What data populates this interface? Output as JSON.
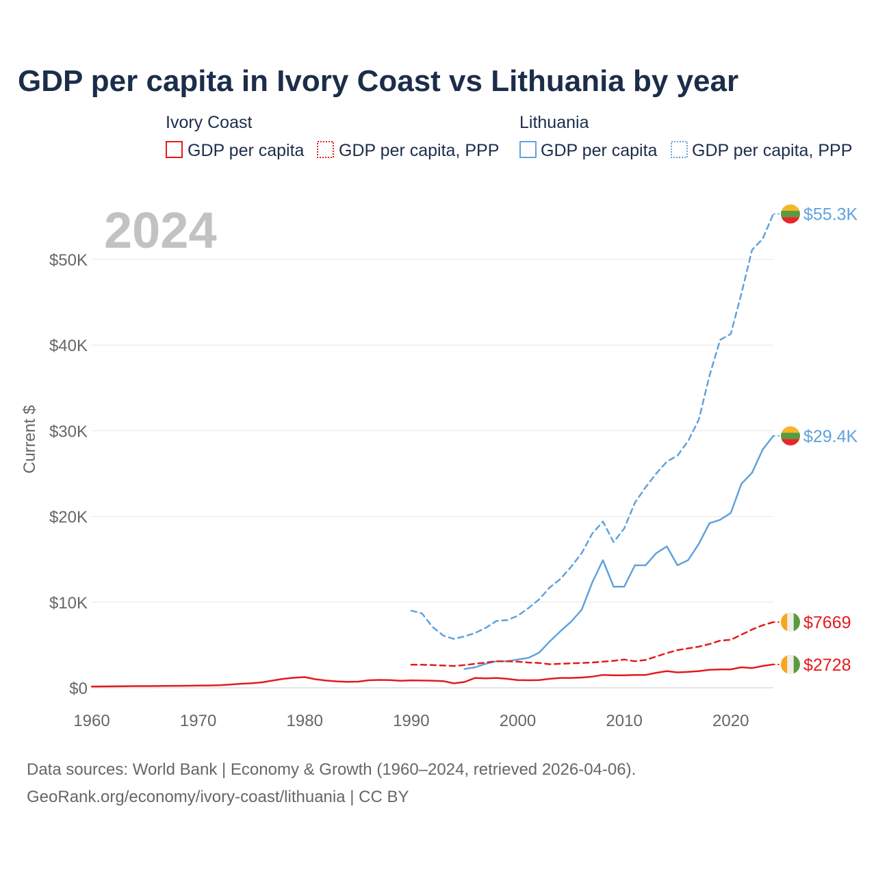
{
  "chart_data": {
    "type": "line",
    "title": "GDP per capita in Ivory Coast vs Lithuania by year",
    "ylabel": "Current $",
    "xlabel": "",
    "year_label": "2024",
    "xlim": [
      1960,
      2024
    ],
    "ylim": [
      0,
      55000
    ],
    "x_ticks": [
      {
        "value": 1960,
        "label": "1960"
      },
      {
        "value": 1970,
        "label": "1970"
      },
      {
        "value": 1980,
        "label": "1980"
      },
      {
        "value": 1990,
        "label": "1990"
      },
      {
        "value": 2000,
        "label": "2000"
      },
      {
        "value": 2010,
        "label": "2010"
      },
      {
        "value": 2020,
        "label": "2020"
      }
    ],
    "y_ticks": [
      {
        "value": 0,
        "label": "$0"
      },
      {
        "value": 10000,
        "label": "$10K"
      },
      {
        "value": 20000,
        "label": "$20K"
      },
      {
        "value": 30000,
        "label": "$30K"
      },
      {
        "value": 40000,
        "label": "$40K"
      },
      {
        "value": 50000,
        "label": "$50K"
      }
    ],
    "legend_groups": [
      {
        "country": "Ivory Coast",
        "items": [
          "GDP per capita",
          "GDP per capita, PPP"
        ],
        "color": "#e41a1c"
      },
      {
        "country": "Lithuania",
        "items": [
          "GDP per capita",
          "GDP per capita, PPP"
        ],
        "color": "#5fa2dd"
      }
    ],
    "series": [
      {
        "name": "Lithuania GDP per capita, PPP",
        "country": "Lithuania",
        "color": "#5fa2dd",
        "style": "dashed",
        "end_label": "$55.3K",
        "flag": "lithuania",
        "x": [
          1990,
          1991,
          1992,
          1993,
          1994,
          1995,
          1996,
          1997,
          1998,
          1999,
          2000,
          2001,
          2002,
          2003,
          2004,
          2005,
          2006,
          2007,
          2008,
          2009,
          2010,
          2011,
          2012,
          2013,
          2014,
          2015,
          2016,
          2017,
          2018,
          2019,
          2020,
          2021,
          2022,
          2023,
          2024
        ],
        "values": [
          9000,
          8700,
          7100,
          6100,
          5700,
          6000,
          6400,
          7000,
          7800,
          7900,
          8400,
          9300,
          10300,
          11700,
          12700,
          14100,
          15700,
          18000,
          19400,
          17000,
          18600,
          21600,
          23400,
          25000,
          26400,
          27100,
          28800,
          31300,
          36400,
          40600,
          41300,
          46000,
          51100,
          52400,
          55300
        ]
      },
      {
        "name": "Lithuania GDP per capita",
        "country": "Lithuania",
        "color": "#5fa2dd",
        "style": "solid",
        "end_label": "$29.4K",
        "flag": "lithuania",
        "x": [
          1995,
          1996,
          1997,
          1998,
          1999,
          2000,
          2001,
          2002,
          2003,
          2004,
          2005,
          2006,
          2007,
          2008,
          2009,
          2010,
          2011,
          2012,
          2013,
          2014,
          2015,
          2016,
          2017,
          2018,
          2019,
          2020,
          2021,
          2022,
          2023,
          2024
        ],
        "values": [
          2200,
          2400,
          2800,
          3100,
          3100,
          3300,
          3500,
          4100,
          5400,
          6600,
          7700,
          9100,
          12300,
          14900,
          11800,
          11800,
          14300,
          14300,
          15700,
          16500,
          14300,
          14900,
          16800,
          19200,
          19600,
          20400,
          23800,
          25100,
          27800,
          29400
        ]
      },
      {
        "name": "Ivory Coast GDP per capita, PPP",
        "country": "Ivory Coast",
        "color": "#e41a1c",
        "style": "dashed",
        "end_label": "$7669",
        "flag": "ivory-coast",
        "x": [
          1990,
          1991,
          1992,
          1993,
          1994,
          1995,
          1996,
          1997,
          1998,
          1999,
          2000,
          2001,
          2002,
          2003,
          2004,
          2005,
          2006,
          2007,
          2008,
          2009,
          2010,
          2011,
          2012,
          2013,
          2014,
          2015,
          2016,
          2017,
          2018,
          2019,
          2020,
          2021,
          2022,
          2023,
          2024
        ],
        "values": [
          2700,
          2700,
          2650,
          2600,
          2550,
          2650,
          2800,
          2950,
          3100,
          3100,
          3050,
          2950,
          2900,
          2750,
          2800,
          2850,
          2900,
          2950,
          3050,
          3150,
          3300,
          3100,
          3250,
          3650,
          4050,
          4400,
          4600,
          4800,
          5100,
          5500,
          5600,
          6200,
          6800,
          7300,
          7669
        ]
      },
      {
        "name": "Ivory Coast GDP per capita",
        "country": "Ivory Coast",
        "color": "#e41a1c",
        "style": "solid",
        "end_label": "$2728",
        "flag": "ivory-coast",
        "x": [
          1960,
          1961,
          1962,
          1963,
          1964,
          1965,
          1966,
          1967,
          1968,
          1969,
          1970,
          1971,
          1972,
          1973,
          1974,
          1975,
          1976,
          1977,
          1978,
          1979,
          1980,
          1981,
          1982,
          1983,
          1984,
          1985,
          1986,
          1987,
          1988,
          1989,
          1990,
          1991,
          1992,
          1993,
          1994,
          1995,
          1996,
          1997,
          1998,
          1999,
          2000,
          2001,
          2002,
          2003,
          2004,
          2005,
          2006,
          2007,
          2008,
          2009,
          2010,
          2011,
          2012,
          2013,
          2014,
          2015,
          2016,
          2017,
          2018,
          2019,
          2020,
          2021,
          2022,
          2023,
          2024
        ],
        "values": [
          150,
          160,
          170,
          180,
          200,
          200,
          210,
          220,
          230,
          240,
          260,
          270,
          300,
          380,
          470,
          530,
          640,
          850,
          1050,
          1180,
          1250,
          1000,
          850,
          750,
          700,
          720,
          880,
          920,
          900,
          820,
          870,
          850,
          830,
          780,
          520,
          680,
          1150,
          1100,
          1150,
          1050,
          900,
          880,
          900,
          1050,
          1150,
          1150,
          1200,
          1300,
          1500,
          1450,
          1450,
          1500,
          1500,
          1750,
          1950,
          1800,
          1850,
          1950,
          2100,
          2150,
          2150,
          2400,
          2300,
          2550,
          2728
        ]
      }
    ]
  },
  "footer": {
    "line1": "Data sources: World Bank | Economy & Growth (1960–2024, retrieved 2026-04-06).",
    "line2": "GeoRank.org/economy/ivory-coast/lithuania | CC BY"
  },
  "colors": {
    "ivory_coast": "#e41a1c",
    "lithuania": "#5fa2dd",
    "title": "#1c2d4a",
    "grid": "#e6e6e6"
  }
}
